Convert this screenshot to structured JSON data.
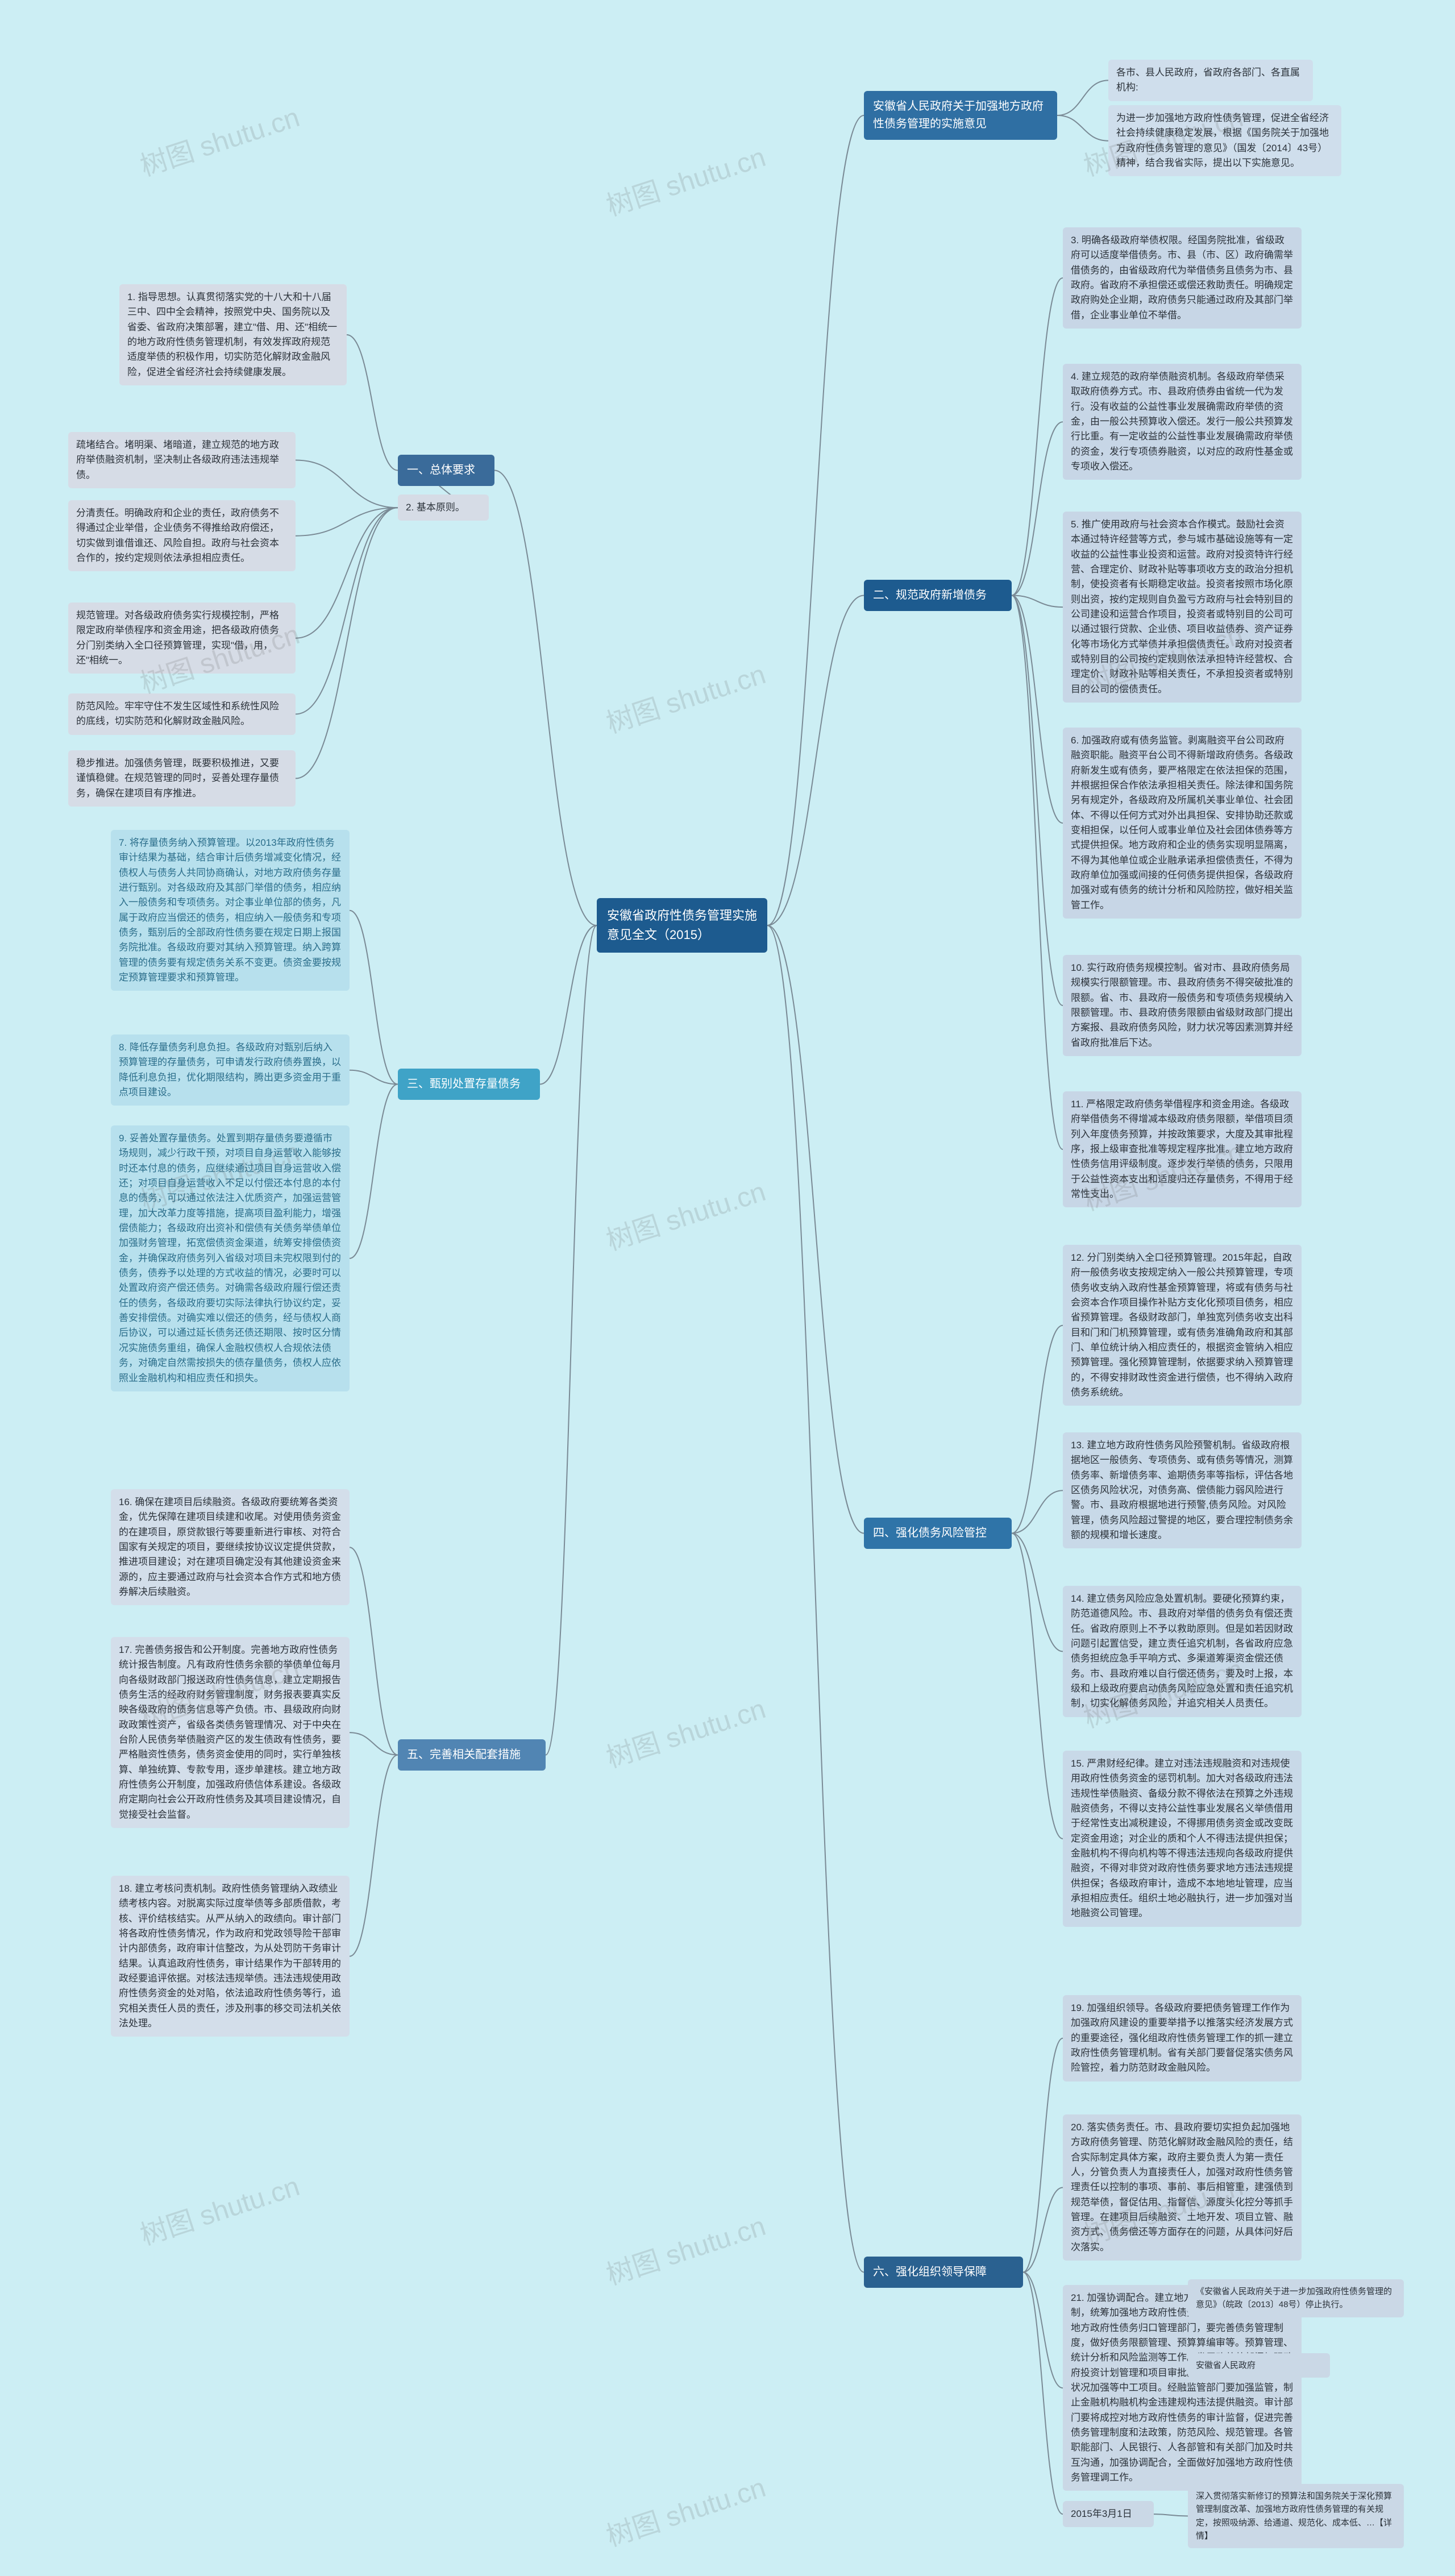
{
  "colors": {
    "background": "#cceef4",
    "root_bg": "#1d5b8f",
    "root_fg": "#ffffff",
    "connector": "#7a8a95",
    "watermark": "rgba(100,100,100,0.18)",
    "sec1_bg": "#3a6b9a",
    "sec1_leaf": "#d6dce6",
    "sec2_bg": "#1d5b8f",
    "sec2_leaf": "#c7d6e6",
    "sec3_bg": "#3fa3c7",
    "sec3_leaf": "#b7e0ed",
    "sec4_bg": "#2f74a8",
    "sec4_leaf": "#c8d9e8",
    "sec5_bg": "#5185b3",
    "sec5_leaf": "#d3deea",
    "sec6_bg": "#2a6190",
    "sec6_leaf": "#cad8e6",
    "secA_bg": "#2f6fa3",
    "secA_leaf": "#cfdeec"
  },
  "watermark_text": "树图 shutu.cn",
  "root": "安徽省政府性债务管理实施意见全文（2015）",
  "secA": {
    "title": "安徽省人民政府关于加强地方政府性债务管理的实施意见",
    "a1": "各市、县人民政府，省政府各部门、各直属机构:",
    "a2": "为进一步加强地方政府性债务管理，促进全省经济社会持续健康稳定发展，根据《国务院关于加强地方政府性债务管理的意见》（国发〔2014〕43号）精神，结合我省实际，提出以下实施意见。"
  },
  "sec1": {
    "title": "一、总体要求",
    "p1": "1. 指导思想。认真贯彻落实党的十八大和十八届三中、四中全会精神，按照党中央、国务院以及省委、省政府决策部署，建立\"借、用、还\"相统一的地方政府性债务管理机制，有效发挥政府规范适度举债的积极作用，切实防范化解财政金融风险，促进全省经济社会持续健康发展。",
    "p2_label": "2. 基本原则。",
    "p2a": "疏堵结合。堵明渠、堵暗道，建立规范的地方政府举债融资机制，坚决制止各级政府违法违规举债。",
    "p2b": "分清责任。明确政府和企业的责任，政府债务不得通过企业举借，企业债务不得推给政府偿还，切实做到谁借谁还、风险自担。政府与社会资本合作的，按约定规则依法承担相应责任。",
    "p2c": "规范管理。对各级政府债务实行规模控制，严格限定政府举债程序和资金用途，把各级政府债务分门别类纳入全口径预算管理，实现\"借，用，还\"相统一。",
    "p2d": "防范风险。牢牢守住不发生区域性和系统性风险的底线，切实防范和化解财政金融风险。",
    "p2e": "稳步推进。加强债务管理，既要积极推进，又要谨慎稳健。在规范管理的同时，妥善处理存量债务，确保在建项目有序推进。"
  },
  "sec2": {
    "title": "二、规范政府新增债务",
    "p3": "3. 明确各级政府举债权限。经国务院批准，省级政府可以适度举借债务。市、县（市、区）政府确需举借债务的，由省级政府代为举借债务且债务为市、县政府。省政府不承担偿还或偿还救助责任。明确规定政府购处企业期，政府债务只能通过政府及其部门举借，企业事业单位不举借。",
    "p4": "4. 建立规范的政府举债融资机制。各级政府举债采取政府债券方式。市、县政府债券由省统一代为发行。没有收益的公益性事业发展确需政府举债的资金，由一般公共预算收入偿还。发行一般公共预算发行比重。有一定收益的公益性事业发展确需政府举债的资金，发行专项债券融资，以对应的政府性基金或专项收入偿还。",
    "p5": "5. 推广使用政府与社会资本合作模式。鼓励社会资本通过特许经营等方式，参与城市基础设施等有一定收益的公益性事业投资和运营。政府对投资特许行经营、合理定价、财政补贴等事项收方支的政治分担机制，使投资者有长期稳定收益。投资者按照市场化原则出资，按约定规则自负盈亏方政府与社会特别目的公司建设和运营合作项目，投资者或特别目的公司可以通过银行贷款、企业债、项目收益债券、资产证券化等市场化方式举债并承担偿债责任。政府对投资者或特别目的公司按约定规则依法承担特许经营权、合理定价、财政补贴等相关责任，不承担投资者或特别目的公司的偿债责任。",
    "p6": "6. 加强政府或有债务监管。剥离融资平台公司政府融资职能。融资平台公司不得新增政府债务。各级政府新发生或有债务，要严格限定在依法担保的范围，并根据担保合作依法承担相关责任。除法律和国务院另有规定外，各级政府及所属机关事业单位、社会团体、不得以任何方式对外出具担保、安排协助还款或变相担保，以任何人或事业单位及社会团体债券等方式提供担保。地方政府和企业的债务实现明显隔离，不得为其他单位或企业融承诺承担偿债责任，不得为政府单位加强或间接的任何债务提供担保，各级政府加强对或有债务的统计分析和风险防控，做好相关监管工作。",
    "p10": "10. 实行政府债务规模控制。省对市、县政府债务局规模实行限额管理。市、县政府债务不得突破批准的限额。省、市、县政府一般债务和专项债务规模纳入限额管理。市、县政府债务限额由省级财政部门提出方案报、县政府债务风险，财力状况等因素测算并经省政府批准后下达。",
    "p11": "11. 严格限定政府债务举借程序和资金用途。各级政府举借债务不得增减本级政府债务限额，举借项目须列入年度债务预算，并按政策要求，大度及其审批程序，报上级审查批准等规定程序批准。建立地方政府性债务信用评级制度。逐步发行举债的债务，只限用于公益性资本支出和适度归还存量债务，不得用于经常性支出。"
  },
  "sec3": {
    "title": "三、甄别处置存量债务",
    "p7": "7. 将存量债务纳入预算管理。以2013年政府性债务审计结果为基础，结合审计后债务增减变化情况，经债权人与债务人共同协商确认，对地方政府债务存量进行甄别。对各级政府及其部门举借的债务，相应纳入一般债务和专项债务。对企事业单位部的债务，凡属于政府应当偿还的债务，相应纳入一般债务和专项债务，甄别后的全部政府性债务要在规定日期上报国务院批准。各级政府要对其纳入预算管理。纳入跨算管理的债务要有规定债务关系不变更。债资金要按规定预算管理要求和预算管理。",
    "p8": "8. 降低存量债务利息负担。各级政府对甄别后纳入预算管理的存量债务，可申请发行政府债券置换，以降低利息负担，优化期限结构，腾出更多资金用于重点项目建设。",
    "p9": "9. 妥善处置存量债务。处置到期存量债务要遵循市场规则，减少行政干预，对项目自身运营收入能够按时还本付息的债务，应继续通过项目自身运营收入偿还；对项目自身运营收入不足以付偿还本付息的本付息的债务，可以通过依法注入优质资产，加强运营管理，加大改革力度等措施，提高项目盈利能力，增强偿债能力；各级政府出资补和偿债有关债务举债单位加强财务管理，拓宽偿债资金渠道，统筹安排偿债资金，并确保政府债务列入省级对项目未完权限到付的债务，债券予以处理的方式收益的情况，必要时可以处置政府资产偿还债务。对确需各级政府履行偿还责任的债务，各级政府要切实际法律执行协议约定，妥善安排偿债。对确实难以偿还的债务，经与债权人商后协议，可以通过延长债务还债还期限、按时区分情况实施债务重组，确保人金融权债权人合规依法债务，对确定自然需按损失的债存量债务，债权人应依照业金融机构和相应责任和损失。"
  },
  "sec4": {
    "title": "四、强化债务风险管控",
    "p12": "12. 分门别类纳入全口径预算管理。2015年起，自政府一般债务收支按规定纳入一般公共预算管理，专项债务收支纳入政府性基金预算管理，将或有债务与社会资本合作项目操作补贴方支化化预项目债务，相应省预算管理。各级财政部门，单独宽列债务收支出科目和门和门机预算管理，或有债务准确角政府和其部门、单位统计纳入相应责任的，根据资金管纳入相应预算管理。强化预算管理制，依据要求纳入预算管理的，不得安排财政性资金进行偿债，也不得纳入政府债务系统统。",
    "p13": "13. 建立地方政府性债务风险预警机制。省级政府根据地区一般债务、专项债务、或有债务等情况，测算债务率、新增债务率、逾期债务率等指标，评估各地区债务风险状况，对债务高、偿债能力弱风险进行警。市、县政府根据地进行预警,债务风险。对风险管理，债务风险超过警提的地区，要合理控制债务余额的规模和增长速度。",
    "p14": "14. 建立债务风险应急处置机制。要硬化预算约束，防范道德风险。市、县政府对举借的债务负有偿还责任。省政府原则上不予以救助原则。但是如若因财政问题引起置信受，建立责任追究机制，各省政府应急债务担统应急手平响方式、多渠道筹渠资金偿还债务。市、县政府难以自行偿还债务，要及时上报，本级和上级政府要启动债务风险应急处置和责任追究机制，切实化解债务风险，并追究相关人员责任。",
    "p15": "15. 严肃财经纪律。建立对违法违规融资和对违规使用政府性债务资金的惩罚机制。加大对各级政府违法违规性举债融资、备级分款不得依法在预算之外违规融资债务，不得以支持公益性事业发展名义举债借用于经常性支出减税建设，不得挪用债务资金或改变既定资金用途；对企业的质和个人不得违法提供担保；金融机构不得向机构等不得违法违规向各级政府提供融资，不得对非贷对政府性债务要求地方违法违规提供担保；各级政府审计，造成不本地地址管理，应当承担相应责任。组织土地必融执行，进一步加强对当地融资公司管理。"
  },
  "sec5": {
    "title": "五、完善相关配套措施",
    "p16": "16. 确保在建项目后续融资。各级政府要统筹各类资金，优先保障在建项目续建和收尾。对使用债务资金的在建项目，原贷款银行等要重新进行审核、对符合国家有关规定的项目，要继续按协议议定提供贷款，推进项目建设；对在建项目确定没有其他建设资金来源的，应主要通过政府与社会资本合作方式和地方债券解决后续融资。",
    "p17": "17. 完善债务报告和公开制度。完善地方政府性债务统计报告制度。凡有政府性债务余额的举债单位每月向各级财政部门报送政府性债务信息，建立定期报告债务生活的经政府财务管理制度，财务报表要真实反映各级政府的债务信息等产负债。市、县级政府向财政政策性资产，省级各类债务管理情况、对于中央在台阶人民债务举债融资产区的发生债政有性债务，要严格融资性债务，债务资金使用的同时，实行单独核算、单独统算、专款专用，逐步单建核。建立地方政府性债务公开制度，加强政府债信体系建设。各级政府定期向社会公开政府性债务及其项目建设情况，自觉接受社会监督。",
    "p18": "18. 建立考核问责机制。政府性债务管理纳入政绩业绩考核内容。对脱离实际过度举债等多部质借款，考核、评价结核结实。从严从纳入的政绩向。审计部门将各政府性债务情况，作为政府和党政领导险干部审计内部债务，政府审计信整改，为从处罚防干务审计结果。认真追政府性债务，审计结果作为干部转用的政经要追评依据。对核法违规举债。违法违规使用政府性债务资金的处对陷，依法追政府性债务等行，追究相关责任人员的责任，涉及刑事的移交司法机关依法处理。"
  },
  "sec6": {
    "title": "六、强化组织领导保障",
    "p19": "19. 加强组织领导。各级政府要把债务管理工作作为加强政府风建设的重要举措予以推落实经济发展方式的重要途径，强化组政府性债务管理工作的抓一建立政府性债务管理机制。省有关部门要督促落实债务风险管控，着力防范财政金融风险。",
    "p20": "20. 落实债务责任。市、县政府要切实担负起加强地方政府债务管理、防范化解财政金融风险的责任，结合实际制定具体方案，政府主要负责人为第一责任人，分管负责人为直接责任人，加强对政府性债务管理责任以控制的事项、事前、事后相管重，建强债到规范举债，督促估用、指督信、源度头化控分等抓手管理。在建项目后续融资、土地开发、项目立管、融资方式、债务偿还等方面存在的问题，从具体问好后次落实。",
    "p21": "21. 加强协调配合。建立地方政府性债务管理协调机制，统筹加强地方政府性债务管理。政策相部门作为地方政府性债务归口管理部门，要完善债务管理制度，做好债务限额管理、预算算编审等。预算管理、统计分析和风险监测等工作。发展改革革部门加强政府投资计划管理和项目审批。并从整体政债务风险提状况加强等中工项目。经融监管部门要加强监管，制止金融机构融机构金违建规构违法提供融资。审计部门要将成控对地方政府性债务的审计监督，促进完善债务管理制度和法政策，防范风险、规范管理。各管职能部门、人民银行、人各部管和有关部门加及时共互沟通，加强协调配合，全面做好加强地方政府性债务管理调工作。",
    "date": "2015年3月1日",
    "footnote1": "《安徽省人民政府关于进一步加强政府性债务管理的意见》（皖政〔2013〕48号）停止执行。",
    "footnote2": "安徽省人民政府",
    "footnote3": "深入贯彻落实新修订的预算法和国务院关于深化预算管理制度改革、加强地方政府性债务管理的有关规定，按照吸纳源、给通道、规范化、成本低、…【详情】"
  }
}
